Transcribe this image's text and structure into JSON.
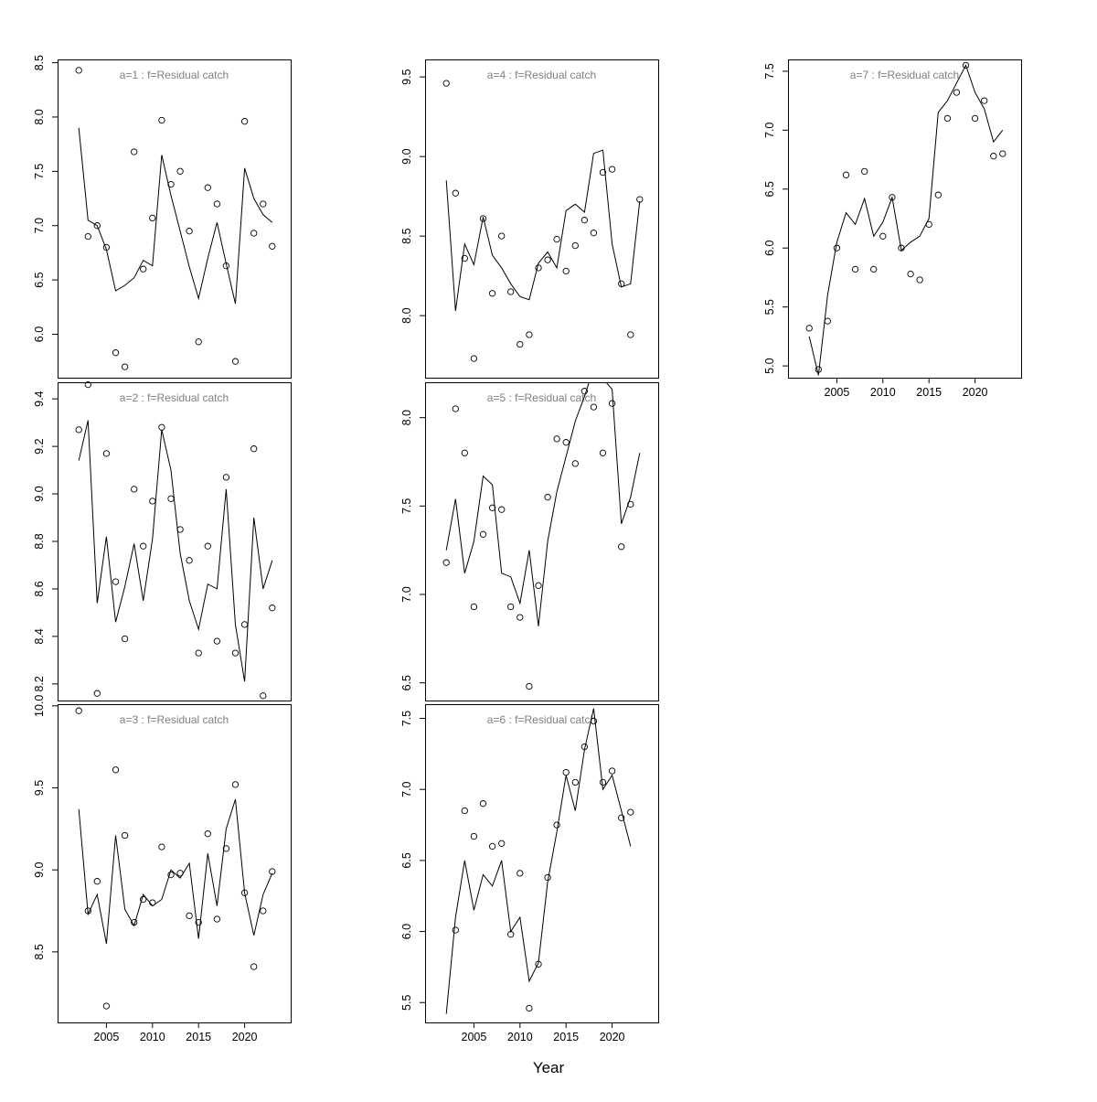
{
  "figure": {
    "xlabel": "Year",
    "background_color": "#ffffff",
    "line_color": "#000000",
    "point_color": "#000000",
    "title_color": "#808080"
  },
  "axes": {
    "xlim": [
      1999.7,
      2025.0
    ],
    "xticks": [
      2005,
      2010,
      2015,
      2020
    ],
    "years": [
      2002,
      2003,
      2004,
      2005,
      2006,
      2007,
      2008,
      2009,
      2010,
      2011,
      2012,
      2013,
      2014,
      2015,
      2016,
      2017,
      2018,
      2019,
      2020,
      2021,
      2022,
      2023
    ]
  },
  "chart_data": [
    {
      "type": "line",
      "title": "a=1  :  f=Residual catch",
      "grid": {
        "col": 0,
        "row": 0
      },
      "ylim": [
        5.6,
        8.53
      ],
      "yticks": [
        6.0,
        6.5,
        7.0,
        7.5,
        8.0,
        8.5
      ],
      "series": [
        {
          "name": "observed",
          "type": "scatter",
          "values": [
            8.43,
            6.9,
            7.0,
            6.8,
            5.83,
            5.7,
            7.68,
            6.6,
            7.07,
            7.97,
            7.38,
            7.5,
            6.95,
            5.93,
            7.35,
            7.2,
            6.63,
            5.75,
            7.96,
            6.93,
            7.2,
            6.81
          ]
        },
        {
          "name": "fitted",
          "type": "line",
          "values": [
            7.9,
            7.05,
            7.0,
            6.78,
            6.4,
            6.45,
            6.52,
            6.68,
            6.63,
            7.65,
            7.28,
            6.95,
            6.62,
            6.33,
            6.7,
            7.03,
            6.65,
            6.28,
            7.53,
            7.25,
            7.1,
            7.03
          ]
        }
      ]
    },
    {
      "type": "line",
      "title": "a=4  :  f=Residual catch",
      "grid": {
        "col": 1,
        "row": 0
      },
      "ylim": [
        7.61,
        9.61
      ],
      "yticks": [
        8.0,
        8.5,
        9.0,
        9.5
      ],
      "series": [
        {
          "name": "observed",
          "type": "scatter",
          "values": [
            9.46,
            8.77,
            8.36,
            7.73,
            8.61,
            8.14,
            8.5,
            8.15,
            7.82,
            7.88,
            8.3,
            8.35,
            8.48,
            8.28,
            8.44,
            8.6,
            8.52,
            8.9,
            8.92,
            8.2,
            7.88,
            8.73
          ]
        },
        {
          "name": "fitted",
          "type": "line",
          "values": [
            8.85,
            8.03,
            8.45,
            8.32,
            8.62,
            8.38,
            8.3,
            8.2,
            8.12,
            8.1,
            8.33,
            8.4,
            8.3,
            8.66,
            8.7,
            8.65,
            9.02,
            9.04,
            8.45,
            8.18,
            8.2,
            8.72
          ]
        }
      ]
    },
    {
      "type": "line",
      "title": "a=7  :  f=Residual catch",
      "grid": {
        "col": 2,
        "row": 0
      },
      "ylim": [
        4.9,
        7.6
      ],
      "yticks": [
        5.0,
        5.5,
        6.0,
        6.5,
        7.0,
        7.5
      ],
      "series": [
        {
          "name": "observed",
          "type": "scatter",
          "values": [
            5.32,
            4.97,
            5.38,
            6.0,
            6.62,
            5.82,
            6.65,
            5.82,
            6.1,
            6.43,
            6.0,
            5.78,
            5.73,
            6.2,
            6.45,
            7.1,
            7.32,
            7.55,
            7.1,
            7.25,
            6.78,
            6.8
          ]
        },
        {
          "name": "fitted",
          "type": "line",
          "values": [
            5.25,
            4.92,
            5.6,
            6.05,
            6.3,
            6.2,
            6.42,
            6.1,
            6.22,
            6.43,
            5.98,
            6.05,
            6.1,
            6.25,
            7.15,
            7.25,
            7.4,
            7.55,
            7.32,
            7.18,
            6.9,
            7.0
          ]
        }
      ]
    },
    {
      "type": "line",
      "title": "a=2  :  f=Residual catch",
      "grid": {
        "col": 0,
        "row": 1
      },
      "ylim": [
        8.13,
        9.47
      ],
      "yticks": [
        8.2,
        8.4,
        8.6,
        8.8,
        9.0,
        9.2,
        9.4
      ],
      "series": [
        {
          "name": "observed",
          "type": "scatter",
          "values": [
            9.27,
            9.46,
            8.16,
            9.17,
            8.63,
            8.39,
            9.02,
            8.78,
            8.97,
            9.28,
            8.98,
            8.85,
            8.72,
            8.33,
            8.78,
            8.38,
            9.07,
            8.33,
            8.45,
            9.19,
            8.15,
            8.52
          ]
        },
        {
          "name": "fitted",
          "type": "line",
          "values": [
            9.14,
            9.31,
            8.54,
            8.82,
            8.46,
            8.61,
            8.79,
            8.55,
            8.81,
            9.27,
            9.1,
            8.75,
            8.55,
            8.43,
            8.62,
            8.6,
            9.02,
            8.45,
            8.21,
            8.9,
            8.6,
            8.72
          ]
        }
      ]
    },
    {
      "type": "line",
      "title": "a=5  :  f=Residual catch",
      "grid": {
        "col": 1,
        "row": 1
      },
      "ylim": [
        6.4,
        8.2
      ],
      "yticks": [
        6.5,
        7.0,
        7.5,
        8.0
      ],
      "series": [
        {
          "name": "observed",
          "type": "scatter",
          "values": [
            7.18,
            8.05,
            7.8,
            6.93,
            7.34,
            7.49,
            7.48,
            6.93,
            6.87,
            6.48,
            7.05,
            7.55,
            7.88,
            7.86,
            7.74,
            8.15,
            8.06,
            7.8,
            8.08,
            7.27,
            7.51,
            null
          ]
        },
        {
          "name": "fitted",
          "type": "line",
          "values": [
            7.25,
            7.54,
            7.12,
            7.3,
            7.67,
            7.62,
            7.12,
            7.1,
            6.95,
            7.25,
            6.82,
            7.3,
            7.58,
            7.78,
            7.98,
            8.12,
            8.28,
            8.22,
            8.16,
            7.4,
            7.55,
            7.8
          ]
        }
      ]
    },
    {
      "type": "line",
      "title": "a=3  :  f=Residual catch",
      "grid": {
        "col": 0,
        "row": 2
      },
      "ylim": [
        8.07,
        10.01
      ],
      "yticks": [
        8.5,
        9.0,
        9.5,
        10.0
      ],
      "series": [
        {
          "name": "observed",
          "type": "scatter",
          "values": [
            9.97,
            8.75,
            8.93,
            8.17,
            9.61,
            9.21,
            8.68,
            8.82,
            8.8,
            9.14,
            8.97,
            8.98,
            8.72,
            8.68,
            9.22,
            8.7,
            9.13,
            9.52,
            8.86,
            8.41,
            8.75,
            8.99
          ]
        },
        {
          "name": "fitted",
          "type": "line",
          "values": [
            9.37,
            8.73,
            8.85,
            8.55,
            9.21,
            8.76,
            8.66,
            8.85,
            8.78,
            8.82,
            9.0,
            8.95,
            9.04,
            8.58,
            9.1,
            8.78,
            9.25,
            9.43,
            8.86,
            8.6,
            8.85,
            8.98
          ]
        }
      ]
    },
    {
      "type": "line",
      "title": "a=6  :  f=Residual catch",
      "grid": {
        "col": 1,
        "row": 2
      },
      "ylim": [
        5.36,
        7.6
      ],
      "yticks": [
        5.5,
        6.0,
        6.5,
        7.0,
        7.5
      ],
      "series": [
        {
          "name": "observed",
          "type": "scatter",
          "values": [
            null,
            6.01,
            6.85,
            6.67,
            6.9,
            6.6,
            6.62,
            5.98,
            6.41,
            5.46,
            5.77,
            6.38,
            6.75,
            7.12,
            7.05,
            7.3,
            7.48,
            7.05,
            7.13,
            6.8,
            6.84,
            null
          ]
        },
        {
          "name": "fitted",
          "type": "line",
          "values": [
            5.42,
            6.1,
            6.5,
            6.15,
            6.4,
            6.32,
            6.5,
            6.0,
            6.1,
            5.65,
            5.78,
            6.35,
            6.7,
            7.1,
            6.85,
            7.28,
            7.57,
            7.0,
            7.1,
            6.85,
            6.6,
            null
          ]
        }
      ]
    }
  ]
}
